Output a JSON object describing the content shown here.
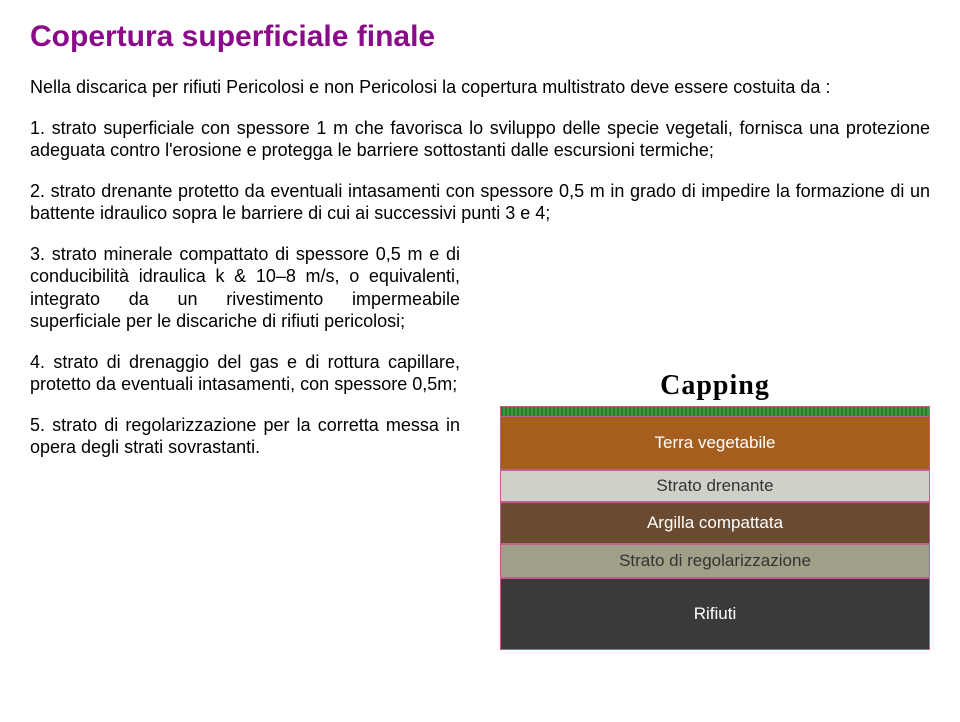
{
  "title": "Copertura superficiale finale",
  "intro": "Nella discarica per rifiuti Pericolosi e non Pericolosi la copertura multistrato deve essere costuita da :",
  "item1": "1. strato superficiale con spessore  1 m che favorisca lo sviluppo delle specie vegetali, fornisca una\nprotezione adeguata contro l'erosione e protegga le barriere sottostanti dalle escursioni termiche;",
  "item2": "2. strato drenante protetto da eventuali intasamenti con spessore  0,5 m in grado di impedire la\nformazione di un battente idraulico sopra le barriere di cui ai successivi punti 3 e 4;",
  "item3": "3. strato minerale compattato di spessore  0,5 m e di conducibilità idraulica k & 10–8 m/s, o equivalenti, integrato da un rivestimento impermeabile superficiale per le discariche di rifiuti pericolosi;",
  "item4": "4. strato di drenaggio del gas e di rottura capillare, protetto da eventuali intasamenti, con spessore  0,5m;",
  "item5": "5. strato di regolarizzazione per la corretta messa in opera degli strati sovrastanti.",
  "diagram": {
    "title": "Capping",
    "layers": [
      {
        "label": "Terra vegetabile",
        "key": "veg"
      },
      {
        "label": "Strato drenante",
        "key": "dren"
      },
      {
        "label": "Argilla compattata",
        "key": "argil"
      },
      {
        "label": "Strato di regolarizzazione",
        "key": "regol"
      },
      {
        "label": "Rifiuti",
        "key": "rifiuti"
      }
    ],
    "colors": {
      "veg": "#a45f1f",
      "dren": "#d0d0c8",
      "argil": "#6a4a30",
      "regol": "#a0a088",
      "rifiuti": "#3a3a3a",
      "border": "#bf5f8f",
      "green": "#2a7a2a"
    }
  }
}
